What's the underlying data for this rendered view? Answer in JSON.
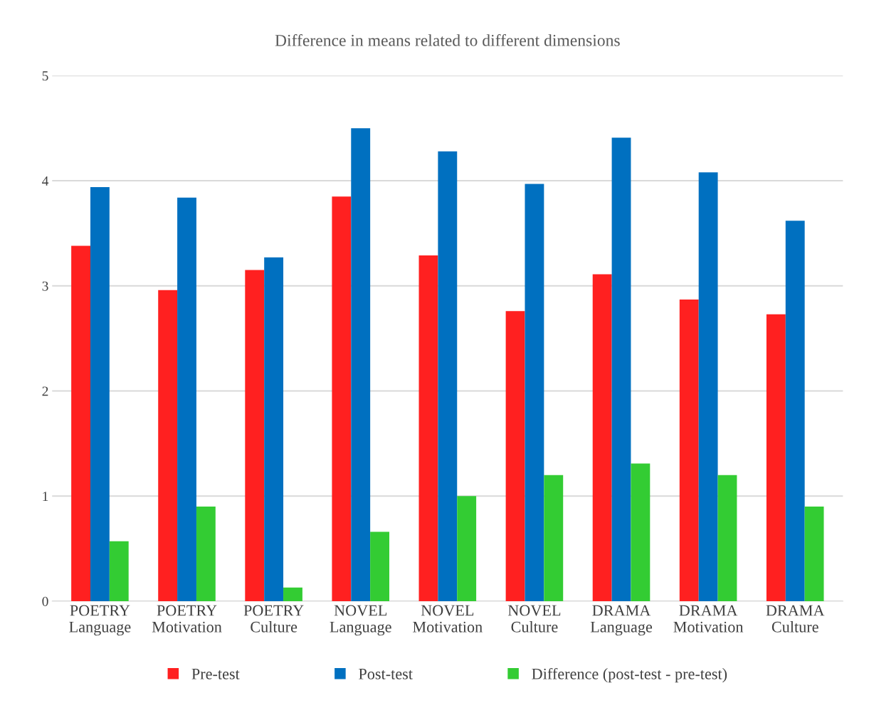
{
  "chart_data": {
    "type": "bar",
    "title": "Difference in means related to different dimensions",
    "categories": [
      "POETRY\nLanguage",
      "POETRY\nMotivation",
      "POETRY\nCulture",
      "NOVEL\nLanguage",
      "NOVEL\nMotivation",
      "NOVEL\nCulture",
      "DRAMA\nLanguage",
      "DRAMA\nMotivation",
      "DRAMA\nCulture"
    ],
    "series": [
      {
        "name": "Pre-test",
        "color": "#ff2020",
        "values": [
          3.38,
          2.96,
          3.15,
          3.85,
          3.29,
          2.76,
          3.11,
          2.87,
          2.73
        ]
      },
      {
        "name": "Post-test",
        "color": "#0070c0",
        "values": [
          3.94,
          3.84,
          3.27,
          4.5,
          4.28,
          3.97,
          4.41,
          4.08,
          3.62
        ]
      },
      {
        "name": "Difference (post-test - pre-test)",
        "color": "#33cc33",
        "values": [
          0.57,
          0.9,
          0.13,
          0.66,
          1.0,
          1.2,
          1.31,
          1.2,
          0.9
        ]
      }
    ],
    "ylim": [
      0,
      5
    ],
    "yticks": [
      0,
      1,
      2,
      3,
      4,
      5
    ],
    "grid": "y",
    "legend": "bottom"
  }
}
